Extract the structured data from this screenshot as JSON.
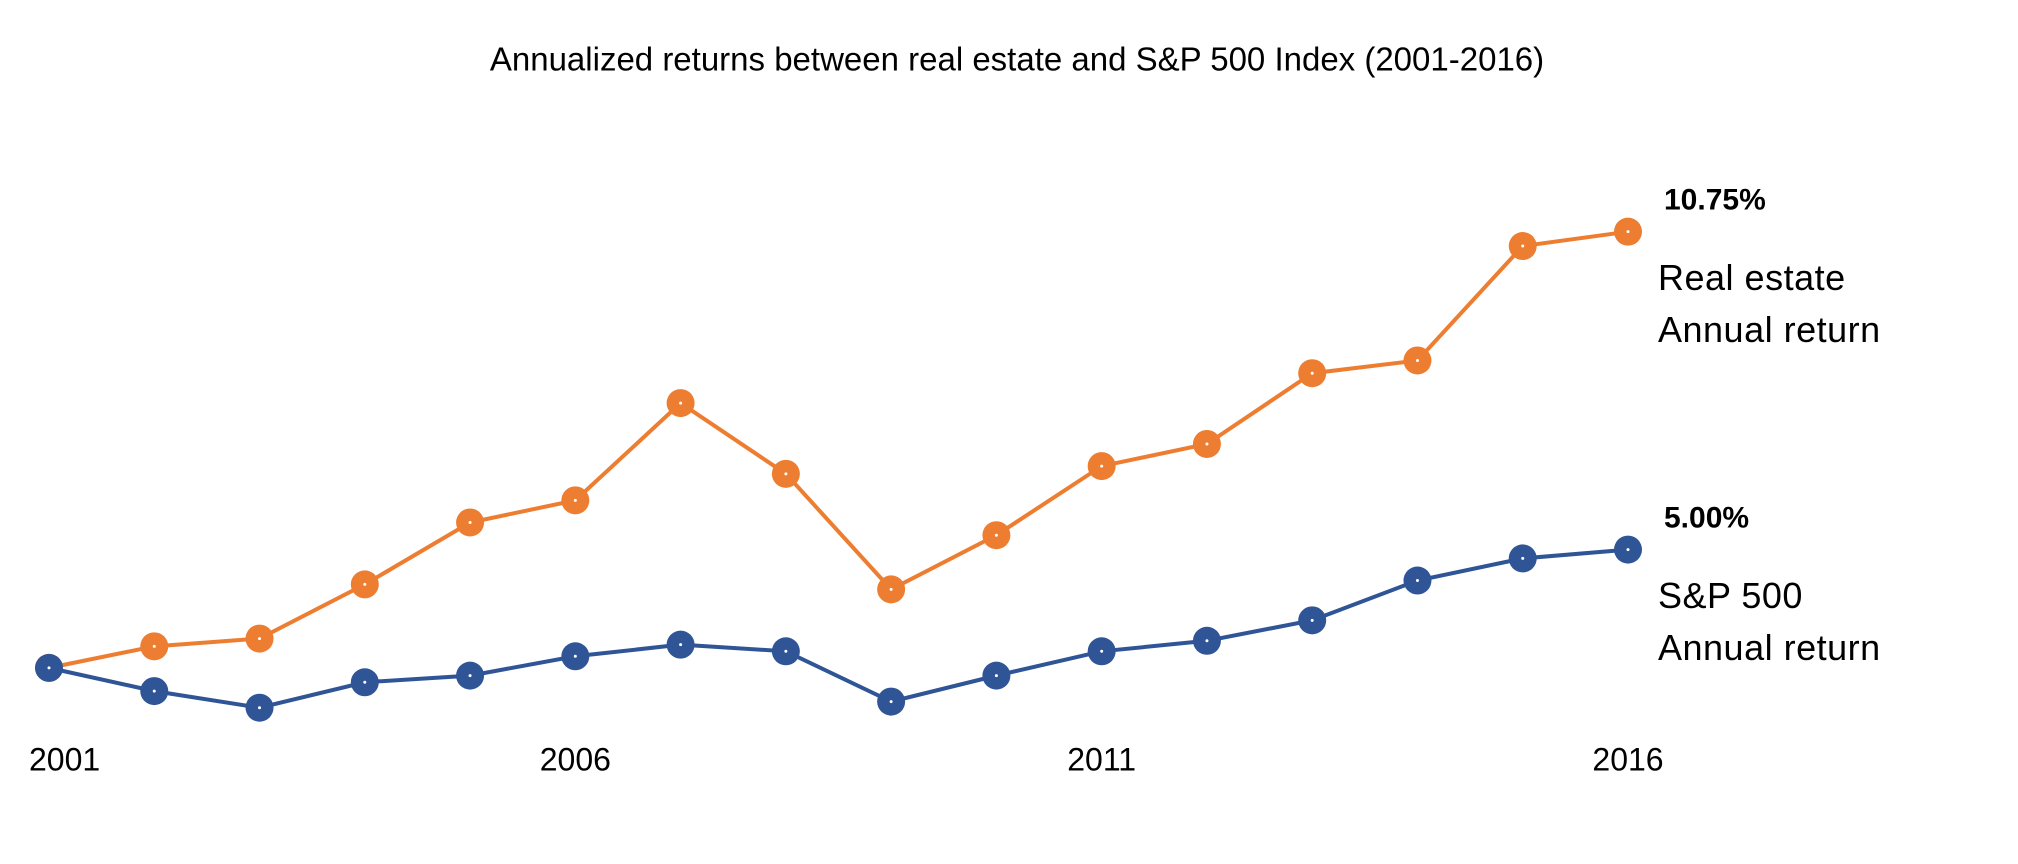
{
  "chart_data": {
    "type": "line",
    "title": "Annualized returns between real estate and S&P 500 Index (2001-2016)",
    "x": [
      2001,
      2002,
      2003,
      2004,
      2005,
      2006,
      2007,
      2008,
      2009,
      2010,
      2011,
      2012,
      2013,
      2014,
      2015,
      2016
    ],
    "xlim": [
      2001,
      2016
    ],
    "xticks": [
      2001,
      2006,
      2011,
      2016
    ],
    "ylim": [
      0,
      14
    ],
    "series": [
      {
        "name": "Real estate Annual return",
        "color": "#ed7d31",
        "values": [
          2.86,
          3.25,
          3.39,
          4.37,
          5.49,
          5.89,
          7.65,
          6.37,
          4.28,
          5.26,
          6.51,
          6.91,
          8.19,
          8.42,
          10.49,
          10.75
        ],
        "value_labels": [
          null,
          null,
          null,
          null,
          null,
          null,
          null,
          null,
          null,
          null,
          null,
          null,
          null,
          null,
          null,
          "10.75%"
        ]
      },
      {
        "name": "S&P 500 Annual return",
        "color": "#2f5597",
        "values": [
          2.86,
          2.44,
          2.14,
          2.6,
          2.72,
          3.07,
          3.28,
          3.16,
          2.25,
          2.72,
          3.16,
          3.35,
          3.72,
          4.44,
          4.84,
          5.0
        ],
        "value_labels": [
          null,
          null,
          null,
          null,
          null,
          null,
          null,
          null,
          null,
          null,
          null,
          null,
          null,
          null,
          null,
          "5.00%"
        ]
      }
    ]
  }
}
